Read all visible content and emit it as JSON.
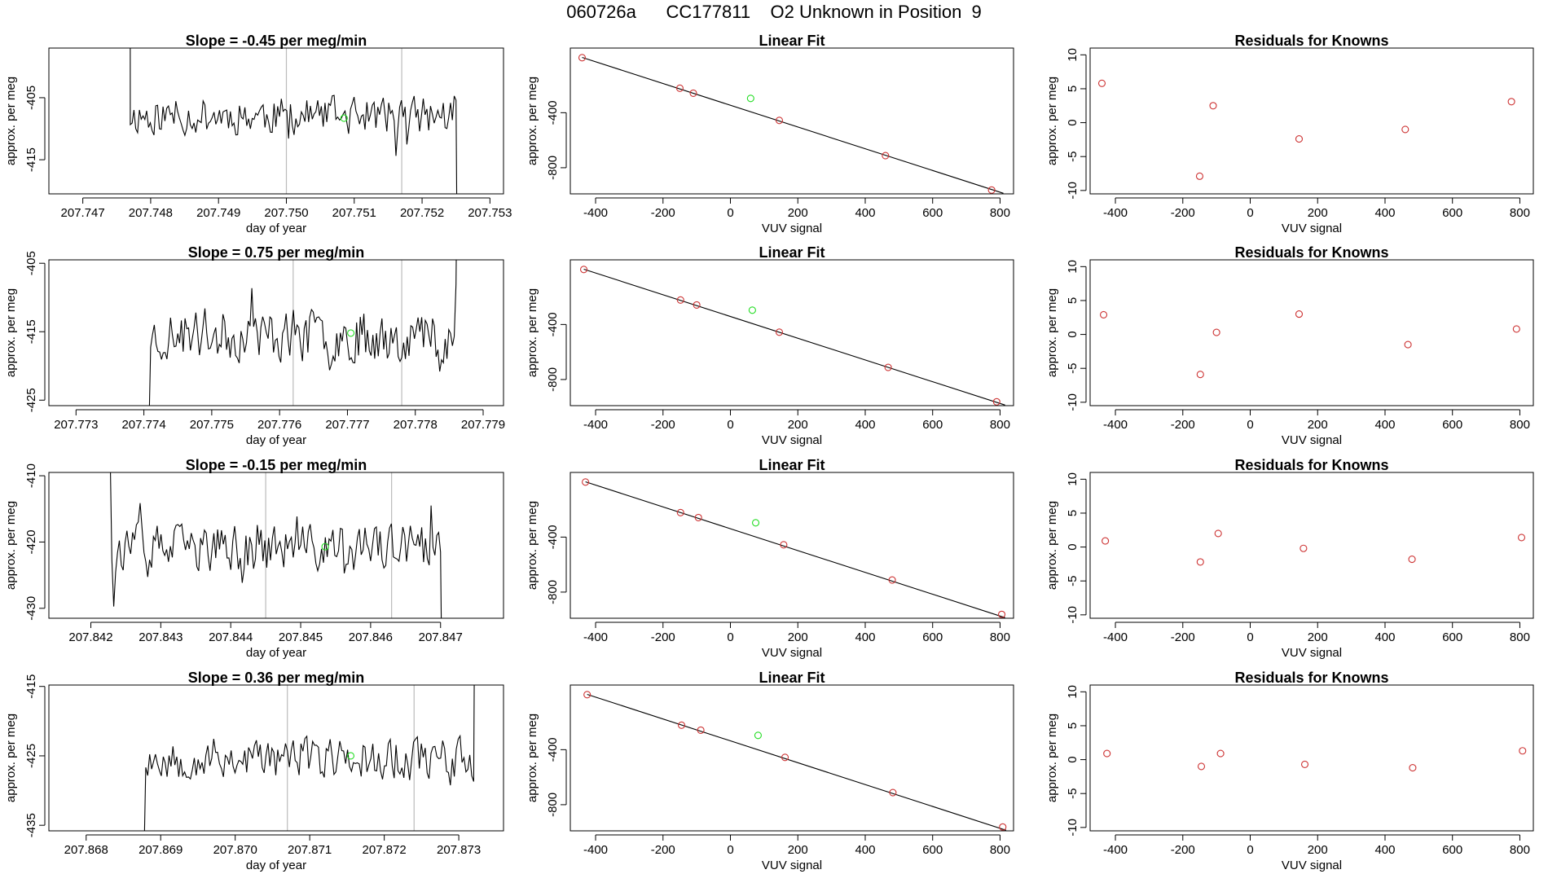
{
  "figure": {
    "title": "060726a      CC177811    O2 Unknown in Position  9"
  },
  "colors": {
    "known": "#cd3333",
    "unknown": "#22dd22",
    "line": "#000000",
    "vline": "#bbbbbb"
  },
  "chart_data": [
    {
      "type": "line",
      "row": 0,
      "col": 0,
      "title": "Slope =  -0.45  per meg/min",
      "xlabel": "day of year",
      "ylabel": "approx. per meg",
      "xlim": [
        207.7465,
        207.7532
      ],
      "ylim": [
        -420.5,
        -397.0
      ],
      "xticks": [
        207.747,
        207.748,
        207.749,
        207.75,
        207.751,
        207.752,
        207.753
      ],
      "xtick_labels": [
        "207.747",
        "207.748",
        "207.749",
        "207.750",
        "207.751",
        "207.752",
        "207.753"
      ],
      "yticks": [
        -405,
        -415
      ],
      "ytick_labels": [
        "-405",
        "-415"
      ],
      "vlines": [
        207.75,
        207.7517
      ],
      "series": [
        {
          "x_start": 207.7477,
          "x_end": 207.7525,
          "points": 180,
          "mean": -407.9,
          "amplitude": 2.8,
          "seed": 11,
          "lead_high": 420,
          "tail_low": -425
        }
      ],
      "unknown_point": [
        207.75085,
        -408.3
      ]
    },
    {
      "type": "scatter",
      "row": 0,
      "col": 1,
      "title": "Linear Fit",
      "xlabel": "VUV signal",
      "ylabel": "approx. per meg",
      "xlim": [
        -475,
        840
      ],
      "ylim": [
        -990,
        70
      ],
      "xticks": [
        -400,
        -200,
        0,
        200,
        400,
        600,
        800
      ],
      "xtick_labels": [
        "-400",
        "-200",
        "0",
        "200",
        "400",
        "600",
        "800"
      ],
      "yticks": [
        -400,
        -800
      ],
      "ytick_labels": [
        "-400",
        "-800"
      ],
      "fit_line": {
        "x": [
          -440,
          810
        ],
        "y": [
          2,
          -986
        ]
      },
      "knowns": [
        [
          -440,
          0
        ],
        [
          -150,
          -222
        ],
        [
          -110,
          -258
        ],
        [
          145,
          -456
        ],
        [
          460,
          -712
        ],
        [
          775,
          -962
        ]
      ],
      "unknown_point": [
        60,
        -296
      ]
    },
    {
      "type": "scatter",
      "row": 0,
      "col": 2,
      "title": "Residuals for Knowns",
      "xlabel": "VUV signal",
      "ylabel": "approx. per meg",
      "xlim": [
        -475,
        840
      ],
      "ylim": [
        -10.5,
        11
      ],
      "xticks": [
        -400,
        -200,
        0,
        200,
        400,
        600,
        800
      ],
      "xtick_labels": [
        "-400",
        "-200",
        "0",
        "200",
        "400",
        "600",
        "800"
      ],
      "yticks": [
        10,
        5,
        0,
        -5,
        -10
      ],
      "ytick_labels": [
        "10",
        "5",
        "0",
        "-5",
        "-10"
      ],
      "knowns": [
        [
          -440,
          5.8
        ],
        [
          -150,
          -7.9
        ],
        [
          -110,
          2.5
        ],
        [
          145,
          -2.4
        ],
        [
          460,
          -1.0
        ],
        [
          775,
          3.1
        ]
      ]
    },
    {
      "type": "line",
      "row": 1,
      "col": 0,
      "title": "Slope =  0.75  per meg/min",
      "xlabel": "day of year",
      "ylabel": "approx. per meg",
      "xlim": [
        207.7726,
        207.7793
      ],
      "ylim": [
        -425.8,
        -404.5
      ],
      "xticks": [
        207.773,
        207.774,
        207.775,
        207.776,
        207.777,
        207.778,
        207.779
      ],
      "xtick_labels": [
        "207.773",
        "207.774",
        "207.775",
        "207.776",
        "207.777",
        "207.778",
        "207.779"
      ],
      "yticks": [
        -405,
        -415,
        -425
      ],
      "ytick_labels": [
        "-405",
        "-415",
        "-425"
      ],
      "vlines": [
        207.7762,
        207.7778
      ],
      "series": [
        {
          "x_start": 207.7741,
          "x_end": 207.7786,
          "points": 170,
          "mean": -415.5,
          "amplitude": 3.5,
          "seed": 23,
          "lead_high": -430,
          "tail_low": -395
        }
      ],
      "unknown_point": [
        207.77705,
        -415.2
      ]
    },
    {
      "type": "scatter",
      "row": 1,
      "col": 1,
      "title": "Linear Fit",
      "xlabel": "VUV signal",
      "ylabel": "approx. per meg",
      "xlim": [
        -475,
        840
      ],
      "ylim": [
        -990,
        70
      ],
      "xticks": [
        -400,
        -200,
        0,
        200,
        400,
        600,
        800
      ],
      "xtick_labels": [
        "-400",
        "-200",
        "0",
        "200",
        "400",
        "600",
        "800"
      ],
      "yticks": [
        -400,
        -800
      ],
      "ytick_labels": [
        "-400",
        "-800"
      ],
      "fit_line": {
        "x": [
          -435,
          815
        ],
        "y": [
          2,
          -986
        ]
      },
      "knowns": [
        [
          -435,
          0
        ],
        [
          -148,
          -222
        ],
        [
          -100,
          -258
        ],
        [
          145,
          -456
        ],
        [
          468,
          -712
        ],
        [
          790,
          -962
        ]
      ],
      "unknown_point": [
        65,
        -296
      ]
    },
    {
      "type": "scatter",
      "row": 1,
      "col": 2,
      "title": "Residuals for Knowns",
      "xlabel": "VUV signal",
      "ylabel": "approx. per meg",
      "xlim": [
        -475,
        840
      ],
      "ylim": [
        -10.5,
        11
      ],
      "xticks": [
        -400,
        -200,
        0,
        200,
        400,
        600,
        800
      ],
      "xtick_labels": [
        "-400",
        "-200",
        "0",
        "200",
        "400",
        "600",
        "800"
      ],
      "yticks": [
        10,
        5,
        0,
        -5,
        -10
      ],
      "ytick_labels": [
        "10",
        "5",
        "0",
        "-5",
        "-10"
      ],
      "knowns": [
        [
          -435,
          2.9
        ],
        [
          -148,
          -5.9
        ],
        [
          -100,
          0.3
        ],
        [
          145,
          3.0
        ],
        [
          468,
          -1.5
        ],
        [
          790,
          0.8
        ]
      ]
    },
    {
      "type": "line",
      "row": 2,
      "col": 0,
      "title": "Slope =  -0.15  per meg/min",
      "xlabel": "day of year",
      "ylabel": "approx. per meg",
      "xlim": [
        207.8414,
        207.8479
      ],
      "ylim": [
        -431.5,
        -409.5
      ],
      "xticks": [
        207.842,
        207.843,
        207.844,
        207.845,
        207.846,
        207.847
      ],
      "xtick_labels": [
        "207.842",
        "207.843",
        "207.844",
        "207.845",
        "207.846",
        "207.847"
      ],
      "yticks": [
        -410,
        -420,
        -430
      ],
      "ytick_labels": [
        "-410",
        "-420",
        "-430"
      ],
      "vlines": [
        207.8445,
        207.8463
      ],
      "series": [
        {
          "x_start": 207.8423,
          "x_end": 207.847,
          "points": 175,
          "mean": -421.0,
          "amplitude": 3.3,
          "seed": 37,
          "lead_high": -405,
          "tail_low": -435
        }
      ],
      "unknown_point": [
        207.84535,
        -420.7
      ]
    },
    {
      "type": "scatter",
      "row": 2,
      "col": 1,
      "title": "Linear Fit",
      "xlabel": "VUV signal",
      "ylabel": "approx. per meg",
      "xlim": [
        -475,
        840
      ],
      "ylim": [
        -990,
        70
      ],
      "xticks": [
        -400,
        -200,
        0,
        200,
        400,
        600,
        800
      ],
      "xtick_labels": [
        "-400",
        "-200",
        "0",
        "200",
        "400",
        "600",
        "800"
      ],
      "yticks": [
        -400,
        -800
      ],
      "ytick_labels": [
        "-400",
        "-800"
      ],
      "fit_line": {
        "x": [
          -430,
          815
        ],
        "y": [
          2,
          -986
        ]
      },
      "knowns": [
        [
          -430,
          0
        ],
        [
          -148,
          -222
        ],
        [
          -95,
          -258
        ],
        [
          158,
          -456
        ],
        [
          480,
          -712
        ],
        [
          805,
          -962
        ]
      ],
      "unknown_point": [
        75,
        -296
      ]
    },
    {
      "type": "scatter",
      "row": 2,
      "col": 2,
      "title": "Residuals for Knowns",
      "xlabel": "VUV signal",
      "ylabel": "approx. per meg",
      "xlim": [
        -475,
        840
      ],
      "ylim": [
        -10.5,
        11
      ],
      "xticks": [
        -400,
        -200,
        0,
        200,
        400,
        600,
        800
      ],
      "xtick_labels": [
        "-400",
        "-200",
        "0",
        "200",
        "400",
        "600",
        "800"
      ],
      "yticks": [
        10,
        5,
        0,
        -5,
        -10
      ],
      "ytick_labels": [
        "10",
        "5",
        "0",
        "-5",
        "-10"
      ],
      "knowns": [
        [
          -430,
          0.9
        ],
        [
          -148,
          -2.2
        ],
        [
          -95,
          2.0
        ],
        [
          158,
          -0.2
        ],
        [
          480,
          -1.8
        ],
        [
          805,
          1.4
        ]
      ]
    },
    {
      "type": "line",
      "row": 3,
      "col": 0,
      "title": "Slope =  0.36  per meg/min",
      "xlabel": "day of year",
      "ylabel": "approx. per meg",
      "xlim": [
        207.8675,
        207.8736
      ],
      "ylim": [
        -435.8,
        -414.8
      ],
      "xticks": [
        207.868,
        207.869,
        207.87,
        207.871,
        207.872,
        207.873
      ],
      "xtick_labels": [
        "207.868",
        "207.869",
        "207.870",
        "207.871",
        "207.872",
        "207.873"
      ],
      "yticks": [
        -415,
        -425,
        -435
      ],
      "ytick_labels": [
        "-415",
        "-425",
        "-435"
      ],
      "vlines": [
        207.8707,
        207.8724
      ],
      "series": [
        {
          "x_start": 207.8688,
          "x_end": 207.8732,
          "points": 170,
          "mean": -425.3,
          "amplitude": 2.8,
          "seed": 53,
          "lead_high": -440,
          "tail_low": -405
        }
      ],
      "unknown_point": [
        207.87155,
        -425.0
      ]
    },
    {
      "type": "scatter",
      "row": 3,
      "col": 1,
      "title": "Linear Fit",
      "xlabel": "VUV signal",
      "ylabel": "approx. per meg",
      "xlim": [
        -475,
        840
      ],
      "ylim": [
        -990,
        70
      ],
      "xticks": [
        -400,
        -200,
        0,
        200,
        400,
        600,
        800
      ],
      "xtick_labels": [
        "-400",
        "-200",
        "0",
        "200",
        "400",
        "600",
        "800"
      ],
      "yticks": [
        -400,
        -800
      ],
      "ytick_labels": [
        "-400",
        "-800"
      ],
      "fit_line": {
        "x": [
          -425,
          818
        ],
        "y": [
          2,
          -986
        ]
      },
      "knowns": [
        [
          -425,
          0
        ],
        [
          -145,
          -222
        ],
        [
          -88,
          -258
        ],
        [
          162,
          -456
        ],
        [
          482,
          -712
        ],
        [
          808,
          -962
        ]
      ],
      "unknown_point": [
        82,
        -296
      ]
    },
    {
      "type": "scatter",
      "row": 3,
      "col": 2,
      "title": "Residuals for Knowns",
      "xlabel": "VUV signal",
      "ylabel": "approx. per meg",
      "xlim": [
        -475,
        840
      ],
      "ylim": [
        -10.5,
        11
      ],
      "xticks": [
        -400,
        -200,
        0,
        200,
        400,
        600,
        800
      ],
      "xtick_labels": [
        "-400",
        "-200",
        "0",
        "200",
        "400",
        "600",
        "800"
      ],
      "yticks": [
        10,
        5,
        0,
        -5,
        -10
      ],
      "ytick_labels": [
        "10",
        "5",
        "0",
        "-5",
        "-10"
      ],
      "knowns": [
        [
          -425,
          0.9
        ],
        [
          -145,
          -1.0
        ],
        [
          -88,
          0.9
        ],
        [
          162,
          -0.7
        ],
        [
          482,
          -1.2
        ],
        [
          808,
          1.3
        ]
      ]
    }
  ]
}
